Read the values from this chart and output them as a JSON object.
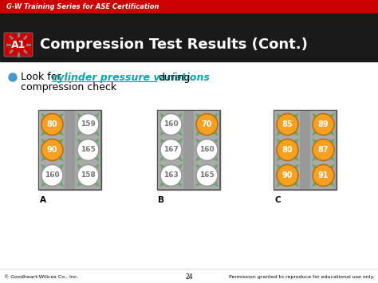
{
  "top_bar_color": "#cc0000",
  "top_bar_text": "G-W Training Series for ASE Certification",
  "header_bg": "#1a1a1a",
  "header_title": "Compression Test Results (Cont.)",
  "a1_badge_color": "#cc0000",
  "slide_bg": "#ffffff",
  "bullet_color": "#4499cc",
  "link_color": "#00aaaa",
  "engine_groups": [
    {
      "label": "A",
      "left_col": [
        {
          "value": "80",
          "orange": true
        },
        {
          "value": "90",
          "orange": true
        },
        {
          "value": "160",
          "orange": false
        }
      ],
      "right_col": [
        {
          "value": "159",
          "orange": false
        },
        {
          "value": "165",
          "orange": false
        },
        {
          "value": "158",
          "orange": false
        }
      ]
    },
    {
      "label": "B",
      "left_col": [
        {
          "value": "160",
          "orange": false
        },
        {
          "value": "167",
          "orange": false
        },
        {
          "value": "163",
          "orange": false
        }
      ],
      "right_col": [
        {
          "value": "70",
          "orange": true
        },
        {
          "value": "160",
          "orange": false
        },
        {
          "value": "165",
          "orange": false
        }
      ]
    },
    {
      "label": "C",
      "left_col": [
        {
          "value": "85",
          "orange": true
        },
        {
          "value": "80",
          "orange": true
        },
        {
          "value": "90",
          "orange": true
        }
      ],
      "right_col": [
        {
          "value": "89",
          "orange": true
        },
        {
          "value": "87",
          "orange": true
        },
        {
          "value": "91",
          "orange": true
        }
      ]
    }
  ],
  "orange_color": "#f5a020",
  "white_circle_color": "#ffffff",
  "engine_bg": "#aaaaaa",
  "green_connector": "#66aa66",
  "footer_text_left": "© Goodheart-Willcox Co., Inc.",
  "footer_text_center": "24",
  "footer_text_right": "Permission granted to reproduce for educational use only."
}
